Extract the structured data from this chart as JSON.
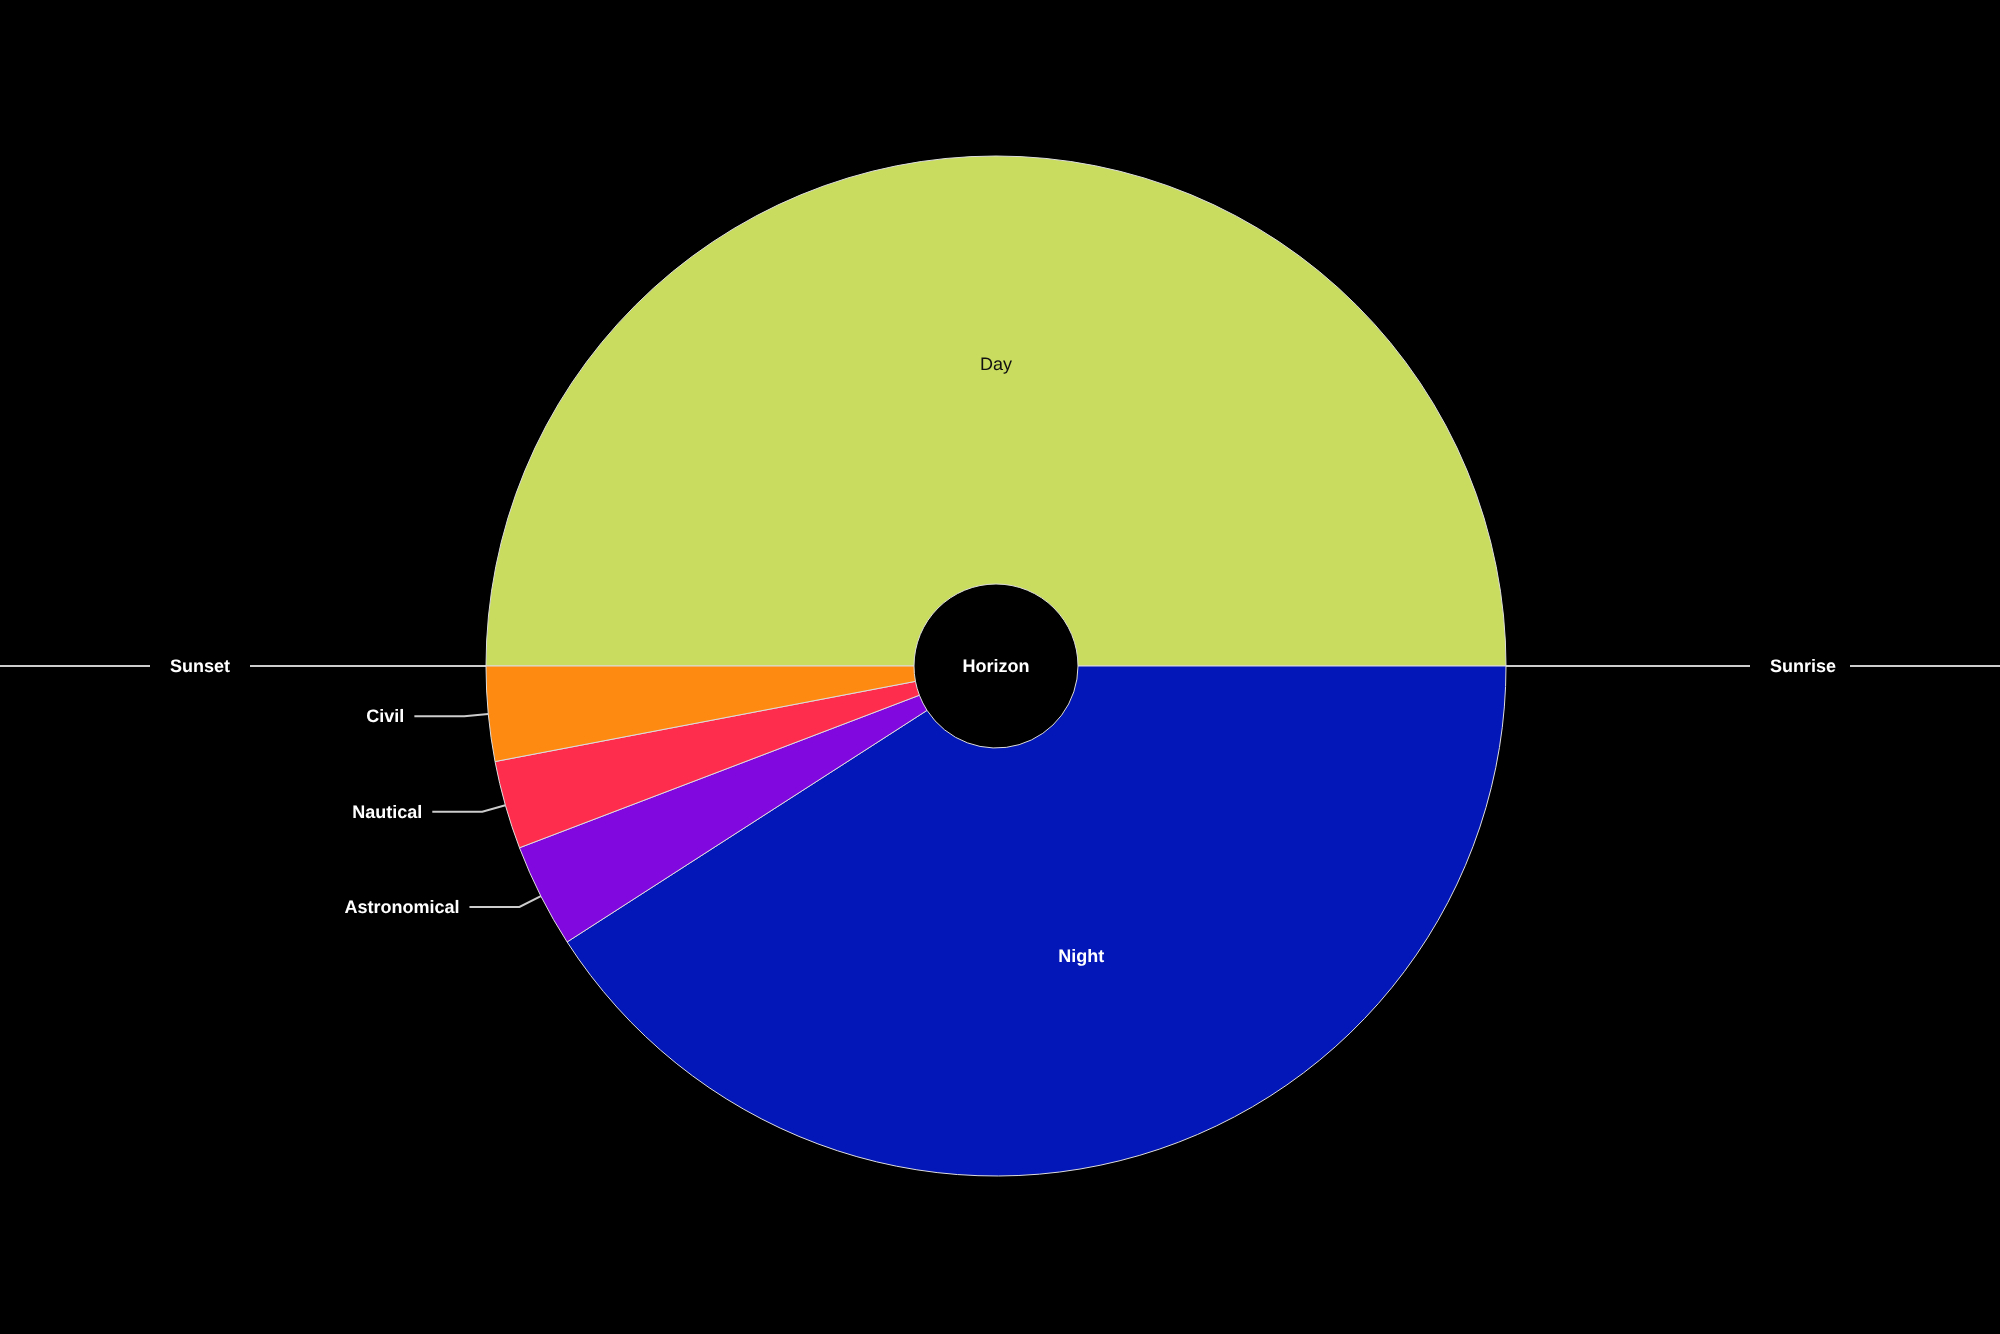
{
  "chart_data": {
    "type": "donut",
    "categories": [
      "Day",
      "Night",
      "Astronomical",
      "Nautical",
      "Civil"
    ],
    "values": [
      50,
      40.9,
      3.3,
      2.8,
      3
    ],
    "colors": [
      "#c9dc5f",
      "#0316b8",
      "#8208e0",
      "#ff2d4d",
      "#ff8a12"
    ],
    "annotations": [
      "Horizon",
      "Sunset",
      "Sunrise"
    ]
  }
}
